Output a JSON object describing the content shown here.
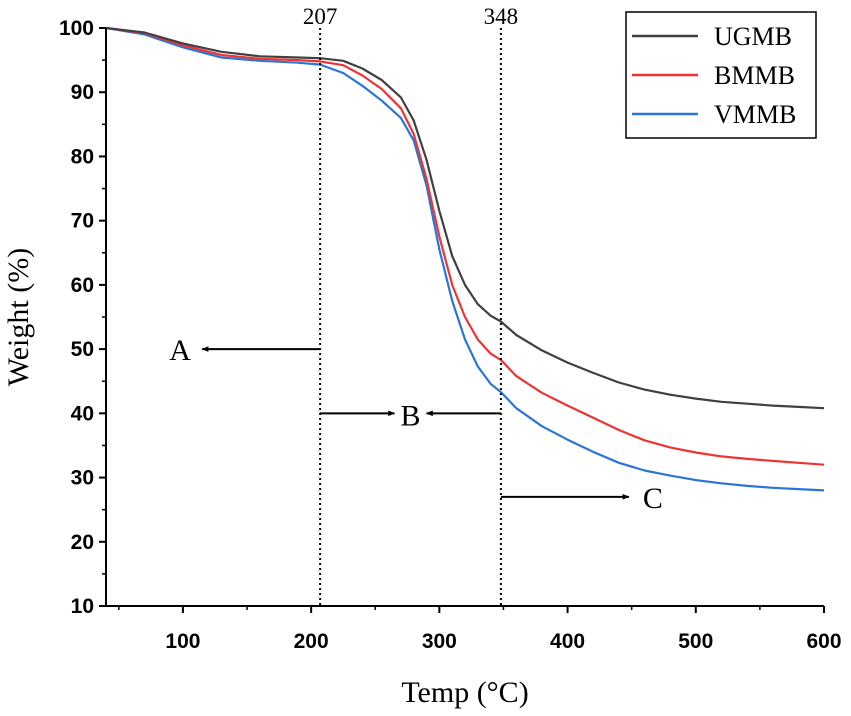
{
  "chart_data": {
    "type": "line",
    "title": "",
    "xlabel": "Temp (°C)",
    "ylabel": "Weight (%)",
    "xlim": [
      40,
      600
    ],
    "ylim": [
      10,
      100
    ],
    "x_ticks": [
      100,
      200,
      300,
      400,
      500,
      600
    ],
    "y_ticks": [
      10,
      20,
      30,
      40,
      50,
      60,
      70,
      80,
      90,
      100
    ],
    "legend_position": "top-right",
    "series": [
      {
        "name": "UGMB",
        "color": "#404040",
        "points": [
          [
            40,
            100
          ],
          [
            70,
            99.3
          ],
          [
            100,
            97.6
          ],
          [
            130,
            96.3
          ],
          [
            160,
            95.6
          ],
          [
            190,
            95.4
          ],
          [
            207,
            95.3
          ],
          [
            225,
            94.9
          ],
          [
            240,
            93.7
          ],
          [
            255,
            91.9
          ],
          [
            270,
            89.2
          ],
          [
            280,
            85.6
          ],
          [
            290,
            79.5
          ],
          [
            300,
            71.5
          ],
          [
            310,
            64.5
          ],
          [
            320,
            60
          ],
          [
            330,
            57
          ],
          [
            340,
            55.2
          ],
          [
            348,
            54.3
          ],
          [
            360,
            52.2
          ],
          [
            380,
            49.8
          ],
          [
            400,
            47.9
          ],
          [
            420,
            46.3
          ],
          [
            440,
            44.8
          ],
          [
            460,
            43.7
          ],
          [
            480,
            42.9
          ],
          [
            500,
            42.3
          ],
          [
            520,
            41.8
          ],
          [
            540,
            41.5
          ],
          [
            560,
            41.2
          ],
          [
            580,
            41
          ],
          [
            600,
            40.8
          ]
        ]
      },
      {
        "name": "BMMB",
        "color": "#ee3333",
        "points": [
          [
            40,
            100
          ],
          [
            70,
            99.2
          ],
          [
            100,
            97.3
          ],
          [
            130,
            95.8
          ],
          [
            160,
            95.2
          ],
          [
            190,
            95
          ],
          [
            207,
            94.8
          ],
          [
            225,
            94.2
          ],
          [
            240,
            92.6
          ],
          [
            255,
            90.5
          ],
          [
            270,
            87.5
          ],
          [
            280,
            83.5
          ],
          [
            290,
            76.5
          ],
          [
            300,
            67.5
          ],
          [
            310,
            60
          ],
          [
            320,
            55
          ],
          [
            330,
            51.5
          ],
          [
            340,
            49.3
          ],
          [
            348,
            48.3
          ],
          [
            360,
            45.8
          ],
          [
            380,
            43.2
          ],
          [
            400,
            41.2
          ],
          [
            420,
            39.3
          ],
          [
            440,
            37.4
          ],
          [
            460,
            35.8
          ],
          [
            480,
            34.7
          ],
          [
            500,
            33.9
          ],
          [
            520,
            33.3
          ],
          [
            540,
            32.9
          ],
          [
            560,
            32.6
          ],
          [
            580,
            32.3
          ],
          [
            600,
            32
          ]
        ]
      },
      {
        "name": "VMMB",
        "color": "#2a75d8",
        "points": [
          [
            40,
            100
          ],
          [
            70,
            99
          ],
          [
            100,
            97
          ],
          [
            130,
            95.4
          ],
          [
            160,
            94.9
          ],
          [
            190,
            94.6
          ],
          [
            207,
            94.3
          ],
          [
            225,
            93
          ],
          [
            240,
            91
          ],
          [
            255,
            88.7
          ],
          [
            270,
            86
          ],
          [
            280,
            82.5
          ],
          [
            290,
            75.5
          ],
          [
            300,
            65.5
          ],
          [
            310,
            57.5
          ],
          [
            320,
            51.5
          ],
          [
            330,
            47.3
          ],
          [
            340,
            44.6
          ],
          [
            348,
            43.3
          ],
          [
            360,
            40.8
          ],
          [
            380,
            38
          ],
          [
            400,
            35.9
          ],
          [
            420,
            34
          ],
          [
            440,
            32.3
          ],
          [
            460,
            31.1
          ],
          [
            480,
            30.3
          ],
          [
            500,
            29.6
          ],
          [
            520,
            29.1
          ],
          [
            540,
            28.7
          ],
          [
            560,
            28.4
          ],
          [
            580,
            28.2
          ],
          [
            600,
            28
          ]
        ]
      }
    ],
    "vlines": [
      {
        "x": 207,
        "label": "207"
      },
      {
        "x": 348,
        "label": "348"
      }
    ],
    "regions": [
      {
        "label": "A",
        "arrow": "left-from-207"
      },
      {
        "label": "B",
        "arrow": "between-207-348"
      },
      {
        "label": "C",
        "arrow": "right-from-348"
      }
    ]
  }
}
